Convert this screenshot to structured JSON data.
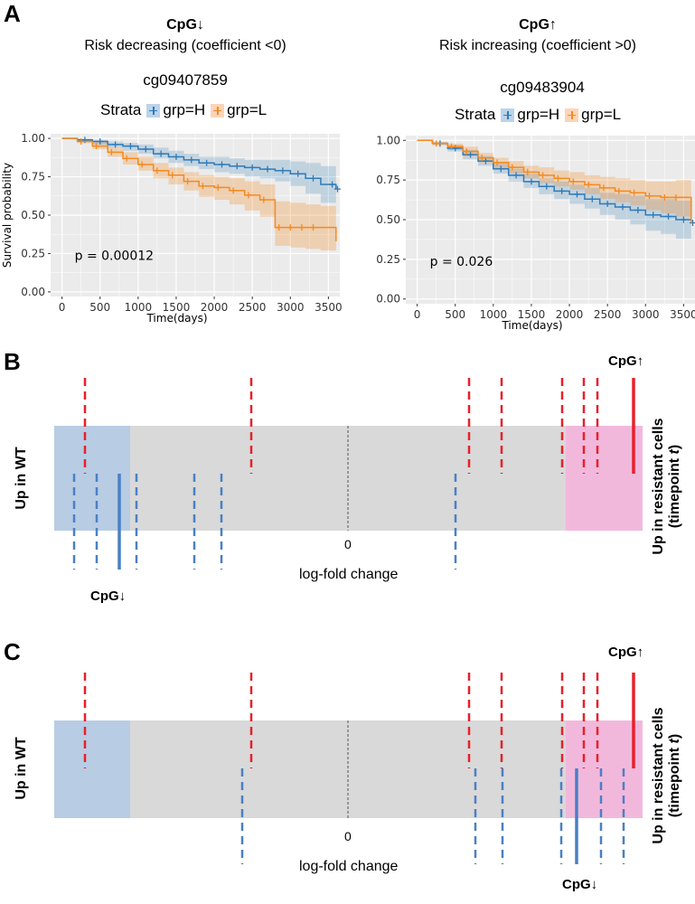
{
  "figure": {
    "panels": {
      "a": "A",
      "b": "B",
      "c": "C"
    }
  },
  "panel_a": {
    "left": {
      "cpg_label": "CpG↓",
      "subtitle": "Risk decreasing (coefficient <0)",
      "probe": "cg09407859",
      "legend_title": "Strata",
      "legend_h": "grp=H",
      "legend_l": "grp=L",
      "pvalue": "p = 0.00012"
    },
    "right": {
      "cpg_label": "CpG↑",
      "subtitle": "Risk increasing (coefficient >0)",
      "probe": "cg09483904",
      "legend_title": "Strata",
      "legend_h": "grp=H",
      "legend_l": "grp=L",
      "pvalue": "p = 0.026"
    }
  },
  "panel_b": {
    "left_label": "Up in WT",
    "right_label_line1": "Up in resistant cells",
    "right_label_line2": "(timepoint t)",
    "zero_label": "0",
    "xlabel": "log-fold change",
    "cpg_up": "CpG↑",
    "cpg_down": "CpG↓"
  },
  "panel_c": {
    "left_label": "Up in WT",
    "right_label_line1": "Up in resistant cells",
    "right_label_line2": "(timepoint t)",
    "zero_label": "0",
    "xlabel": "log-fold change",
    "cpg_up": "CpG↑",
    "cpg_down": "CpG↓"
  },
  "colors": {
    "blue": "#2f7bb8",
    "orange": "#f58a1f",
    "orange_ci": "#fcd4b9",
    "panel_bg": "#ebebeb",
    "wt_region": "#b8cce4",
    "resist_region": "#f2b8dc",
    "neutral_region": "#d9d9d9",
    "red": "#e8202a",
    "dashblue": "#4a80c4"
  },
  "chart_data": [
    {
      "type": "line",
      "title": "cg09407859",
      "xlabel": "Time(days)",
      "ylabel": "Survival probability",
      "xlim": [
        -150,
        3650
      ],
      "ylim": [
        -0.03,
        1.03
      ],
      "xticks": [
        "0",
        "500",
        "1000",
        "1500",
        "2000",
        "2500",
        "3000",
        "3500"
      ],
      "yticks": [
        "0.00",
        "0.25",
        "0.50",
        "0.75",
        "1.00"
      ],
      "series": [
        {
          "name": "grp=H",
          "color": "#2f7bb8",
          "x": [
            0,
            200,
            400,
            600,
            800,
            1000,
            1200,
            1400,
            1600,
            1800,
            2000,
            2200,
            2400,
            2600,
            2800,
            3000,
            3200,
            3400,
            3600
          ],
          "y": [
            1.0,
            0.99,
            0.98,
            0.96,
            0.95,
            0.93,
            0.9,
            0.88,
            0.86,
            0.84,
            0.83,
            0.82,
            0.81,
            0.8,
            0.79,
            0.77,
            0.74,
            0.7,
            0.67
          ],
          "lower": [
            1.0,
            0.98,
            0.96,
            0.94,
            0.92,
            0.9,
            0.87,
            0.84,
            0.82,
            0.8,
            0.78,
            0.77,
            0.75,
            0.74,
            0.72,
            0.69,
            0.64,
            0.58,
            0.55
          ],
          "upper": [
            1.0,
            1.0,
            0.99,
            0.98,
            0.97,
            0.96,
            0.94,
            0.92,
            0.9,
            0.88,
            0.88,
            0.87,
            0.86,
            0.86,
            0.86,
            0.85,
            0.84,
            0.82,
            0.8
          ],
          "censor_x": [
            300,
            500,
            700,
            900,
            1100,
            1300,
            1500,
            1700,
            1900,
            2100,
            2300,
            2500,
            2700,
            2900,
            3100,
            3300,
            3550,
            3620
          ]
        },
        {
          "name": "grp=L",
          "color": "#f58a1f",
          "x": [
            0,
            200,
            400,
            600,
            800,
            1000,
            1200,
            1400,
            1600,
            1800,
            2000,
            2200,
            2400,
            2600,
            2800,
            3000,
            3200,
            3400,
            3600
          ],
          "y": [
            1.0,
            0.98,
            0.95,
            0.91,
            0.87,
            0.83,
            0.79,
            0.76,
            0.72,
            0.69,
            0.68,
            0.66,
            0.63,
            0.6,
            0.42,
            0.42,
            0.42,
            0.42,
            0.33
          ],
          "lower": [
            1.0,
            0.97,
            0.93,
            0.88,
            0.83,
            0.79,
            0.74,
            0.7,
            0.66,
            0.62,
            0.6,
            0.57,
            0.53,
            0.49,
            0.3,
            0.29,
            0.28,
            0.27,
            0.22
          ],
          "upper": [
            1.0,
            0.99,
            0.98,
            0.94,
            0.91,
            0.88,
            0.84,
            0.81,
            0.78,
            0.76,
            0.75,
            0.74,
            0.72,
            0.7,
            0.59,
            0.58,
            0.57,
            0.56,
            0.5
          ],
          "censor_x": [
            250,
            450,
            650,
            850,
            1050,
            1250,
            1450,
            1650,
            1850,
            2050,
            2250,
            2450,
            2650,
            2850,
            3000,
            3150,
            3300
          ]
        }
      ]
    },
    {
      "type": "line",
      "title": "cg09483904",
      "xlabel": "Time(days)",
      "ylabel": "",
      "xlim": [
        -150,
        3650
      ],
      "ylim": [
        -0.03,
        1.03
      ],
      "xticks": [
        "0",
        "500",
        "1000",
        "1500",
        "2000",
        "2500",
        "3000",
        "3500"
      ],
      "yticks": [
        "0.00",
        "0.25",
        "0.50",
        "0.75",
        "1.00"
      ],
      "series": [
        {
          "name": "grp=H",
          "color": "#2f7bb8",
          "x": [
            0,
            200,
            400,
            600,
            800,
            1000,
            1200,
            1400,
            1600,
            1800,
            2000,
            2200,
            2400,
            2600,
            2800,
            3000,
            3200,
            3400,
            3600
          ],
          "y": [
            1.0,
            0.98,
            0.95,
            0.91,
            0.87,
            0.82,
            0.78,
            0.74,
            0.71,
            0.68,
            0.66,
            0.63,
            0.6,
            0.58,
            0.56,
            0.53,
            0.52,
            0.5,
            0.48
          ],
          "lower": [
            1.0,
            0.97,
            0.93,
            0.88,
            0.84,
            0.79,
            0.74,
            0.7,
            0.66,
            0.63,
            0.6,
            0.57,
            0.53,
            0.5,
            0.47,
            0.43,
            0.41,
            0.38,
            0.34
          ],
          "upper": [
            1.0,
            0.99,
            0.97,
            0.94,
            0.9,
            0.86,
            0.82,
            0.79,
            0.76,
            0.74,
            0.72,
            0.7,
            0.67,
            0.66,
            0.65,
            0.63,
            0.63,
            0.62,
            0.62
          ],
          "censor_x": [
            300,
            500,
            700,
            900,
            1100,
            1300,
            1500,
            1700,
            1900,
            2100,
            2300,
            2500,
            2700,
            2900,
            3100,
            3300,
            3500,
            3620
          ]
        },
        {
          "name": "grp=L",
          "color": "#f58a1f",
          "x": [
            0,
            200,
            400,
            600,
            800,
            1000,
            1200,
            1400,
            1600,
            1800,
            2000,
            2200,
            2400,
            2600,
            2800,
            3000,
            3200,
            3400,
            3600
          ],
          "y": [
            1.0,
            0.98,
            0.96,
            0.93,
            0.89,
            0.86,
            0.83,
            0.8,
            0.78,
            0.76,
            0.74,
            0.72,
            0.7,
            0.68,
            0.67,
            0.65,
            0.64,
            0.64,
            0.48
          ],
          "lower": [
            1.0,
            0.97,
            0.94,
            0.9,
            0.86,
            0.82,
            0.79,
            0.76,
            0.73,
            0.71,
            0.69,
            0.66,
            0.63,
            0.61,
            0.59,
            0.56,
            0.54,
            0.52,
            0.35
          ],
          "upper": [
            1.0,
            0.99,
            0.98,
            0.96,
            0.92,
            0.89,
            0.87,
            0.84,
            0.83,
            0.81,
            0.8,
            0.78,
            0.77,
            0.76,
            0.75,
            0.74,
            0.74,
            0.75,
            0.62
          ],
          "censor_x": [
            250,
            450,
            650,
            850,
            1050,
            1250,
            1450,
            1650,
            1850,
            2050,
            2250,
            2450,
            2650,
            2850,
            3050,
            3250,
            3400
          ]
        }
      ]
    }
  ]
}
